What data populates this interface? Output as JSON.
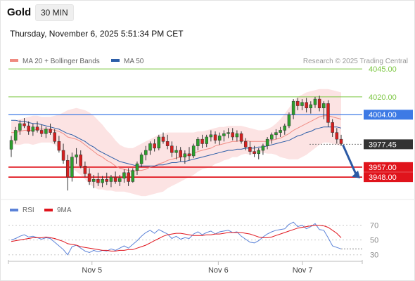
{
  "header": {
    "title": "Gold",
    "timeframe": "30 MIN",
    "datetime": "Thursday, November 6, 2025 5:51:34 PM CET"
  },
  "legend": {
    "items": [
      {
        "label": "MA 20 + Bollinger Bands",
        "color": "#ef8a80"
      },
      {
        "label": "MA 50",
        "color": "#2c5ea8"
      }
    ],
    "credit": "Research © 2025 Trading Central"
  },
  "colors": {
    "bull": "#2ca02c",
    "bear": "#d61f1f",
    "band_fill": "#fcdede",
    "green_level": "#7cc742",
    "blue_level": "#3d7ae5",
    "red_level": "#e0141c",
    "current": "#333333",
    "arrow": "#2b5aa5",
    "rsi": "#5b82d8",
    "rsi_ma": "#e0141c"
  },
  "chart_data": {
    "type": "candlestick",
    "x_labels": [
      "Nov 5",
      "Nov 6",
      "Nov 7"
    ],
    "ylim": [
      3938,
      4047
    ],
    "levels": [
      {
        "value": 4045.0,
        "label": "4045.00",
        "kind": "resistance-green"
      },
      {
        "value": 4020.0,
        "label": "4020.00",
        "kind": "resistance-green"
      },
      {
        "value": 4004.0,
        "label": "4004.00",
        "kind": "pivot-blue"
      },
      {
        "value": 3977.45,
        "label": "3977.45",
        "kind": "current-price"
      },
      {
        "value": 3957.0,
        "label": "3957.00",
        "kind": "target-red"
      },
      {
        "value": 3948.0,
        "label": "3948.00",
        "kind": "target-red"
      }
    ],
    "candles": [
      [
        3973,
        3985,
        3966,
        3981
      ],
      [
        3981,
        3993,
        3978,
        3990
      ],
      [
        3990,
        3999,
        3986,
        3996
      ],
      [
        3996,
        4001,
        3992,
        3994
      ],
      [
        3994,
        3998,
        3986,
        3989
      ],
      [
        3989,
        3996,
        3985,
        3993
      ],
      [
        3993,
        3998,
        3988,
        3990
      ],
      [
        3990,
        3995,
        3984,
        3987
      ],
      [
        3987,
        3993,
        3983,
        3991
      ],
      [
        3991,
        3996,
        3986,
        3988
      ],
      [
        3988,
        3991,
        3978,
        3980
      ],
      [
        3980,
        3985,
        3970,
        3972
      ],
      [
        3972,
        3978,
        3960,
        3963
      ],
      [
        3963,
        3968,
        3936,
        3948
      ],
      [
        3948,
        3970,
        3944,
        3966
      ],
      [
        3966,
        3974,
        3960,
        3968
      ],
      [
        3968,
        3972,
        3956,
        3958
      ],
      [
        3958,
        3962,
        3948,
        3951
      ],
      [
        3951,
        3956,
        3941,
        3944
      ],
      [
        3944,
        3950,
        3938,
        3946
      ],
      [
        3946,
        3952,
        3940,
        3943
      ],
      [
        3943,
        3949,
        3939,
        3946
      ],
      [
        3946,
        3952,
        3941,
        3944
      ],
      [
        3944,
        3950,
        3939,
        3948
      ],
      [
        3948,
        3953,
        3942,
        3944
      ],
      [
        3944,
        3950,
        3940,
        3947
      ],
      [
        3947,
        3955,
        3943,
        3952
      ],
      [
        3952,
        3956,
        3940,
        3944
      ],
      [
        3944,
        3956,
        3943,
        3954
      ],
      [
        3954,
        3962,
        3950,
        3960
      ],
      [
        3960,
        3970,
        3957,
        3968
      ],
      [
        3968,
        3976,
        3963,
        3972
      ],
      [
        3972,
        3980,
        3968,
        3978
      ],
      [
        3978,
        3982,
        3971,
        3974
      ],
      [
        3974,
        3986,
        3972,
        3984
      ],
      [
        3984,
        3988,
        3978,
        3980
      ],
      [
        3980,
        3986,
        3973,
        3976
      ],
      [
        3976,
        3980,
        3966,
        3970
      ],
      [
        3970,
        3976,
        3964,
        3972
      ],
      [
        3972,
        3975,
        3962,
        3966
      ],
      [
        3966,
        3972,
        3960,
        3969
      ],
      [
        3969,
        3975,
        3963,
        3967
      ],
      [
        3967,
        3978,
        3965,
        3976
      ],
      [
        3976,
        3984,
        3972,
        3982
      ],
      [
        3982,
        3986,
        3974,
        3978
      ],
      [
        3978,
        3986,
        3975,
        3984
      ],
      [
        3984,
        3990,
        3980,
        3986
      ],
      [
        3986,
        3989,
        3978,
        3981
      ],
      [
        3981,
        3988,
        3977,
        3985
      ],
      [
        3985,
        3990,
        3980,
        3987
      ],
      [
        3987,
        3992,
        3983,
        3988
      ],
      [
        3988,
        3992,
        3981,
        3984
      ],
      [
        3984,
        3990,
        3980,
        3987
      ],
      [
        3987,
        3989,
        3978,
        3980
      ],
      [
        3980,
        3983,
        3972,
        3975
      ],
      [
        3975,
        3980,
        3968,
        3971
      ],
      [
        3971,
        3976,
        3966,
        3969
      ],
      [
        3969,
        3974,
        3964,
        3972
      ],
      [
        3972,
        3978,
        3968,
        3976
      ],
      [
        3976,
        3984,
        3973,
        3982
      ],
      [
        3982,
        3988,
        3978,
        3986
      ],
      [
        3986,
        3991,
        3982,
        3988
      ],
      [
        3988,
        3993,
        3984,
        3990
      ],
      [
        3990,
        3996,
        3986,
        3994
      ],
      [
        3994,
        4006,
        3992,
        4004
      ],
      [
        4004,
        4018,
        4000,
        4016
      ],
      [
        4016,
        4019,
        4008,
        4012
      ],
      [
        4012,
        4018,
        4008,
        4015
      ],
      [
        4015,
        4019,
        4006,
        4010
      ],
      [
        4010,
        4016,
        4005,
        4013
      ],
      [
        4013,
        4020,
        4010,
        4018
      ],
      [
        4018,
        4021,
        4007,
        4010
      ],
      [
        4010,
        4016,
        4000,
        4014
      ],
      [
        4014,
        4017,
        3993,
        3997
      ],
      [
        3997,
        4000,
        3984,
        3988
      ],
      [
        3988,
        3992,
        3978,
        3982
      ],
      [
        3982,
        3986,
        3976,
        3978
      ]
    ],
    "ma20": [
      3988,
      3988,
      3989,
      3990,
      3990,
      3990,
      3991,
      3991,
      3991,
      3991,
      3990,
      3989,
      3987,
      3984,
      3983,
      3982,
      3980,
      3977,
      3974,
      3971,
      3968,
      3966,
      3963,
      3961,
      3958,
      3956,
      3955,
      3954,
      3953,
      3954,
      3954,
      3955,
      3957,
      3958,
      3960,
      3961,
      3963,
      3964,
      3965,
      3966,
      3967,
      3968,
      3969,
      3971,
      3972,
      3973,
      3974,
      3976,
      3977,
      3978,
      3979,
      3980,
      3980,
      3981,
      3981,
      3980,
      3980,
      3980,
      3980,
      3980,
      3981,
      3982,
      3983,
      3985,
      3987,
      3990,
      3992,
      3994,
      3996,
      3998,
      4000,
      4002,
      4003,
      4003,
      4002,
      4001,
      4000
    ],
    "upper_band": [
      3998,
      3999,
      4000,
      4001,
      4002,
      4003,
      4003,
      4002,
      4002,
      4002,
      4003,
      4004,
      4006,
      4008,
      4009,
      4010,
      4009,
      4008,
      4006,
      4003,
      3999,
      3995,
      3990,
      3986,
      3981,
      3977,
      3975,
      3974,
      3974,
      3976,
      3978,
      3980,
      3982,
      3984,
      3986,
      3987,
      3988,
      3988,
      3988,
      3988,
      3988,
      3988,
      3988,
      3989,
      3989,
      3990,
      3991,
      3992,
      3993,
      3993,
      3994,
      3994,
      3994,
      3994,
      3993,
      3992,
      3991,
      3990,
      3990,
      3991,
      3993,
      3996,
      4000,
      4005,
      4010,
      4016,
      4020,
      4022,
      4024,
      4025,
      4026,
      4027,
      4027,
      4027,
      4026,
      4025,
      4024
    ],
    "lower_band": [
      3978,
      3977,
      3977,
      3978,
      3978,
      3977,
      3978,
      3979,
      3979,
      3979,
      3977,
      3974,
      3968,
      3960,
      3956,
      3953,
      3950,
      3946,
      3942,
      3939,
      3937,
      3937,
      3936,
      3936,
      3935,
      3935,
      3935,
      3934,
      3933,
      3932,
      3931,
      3931,
      3932,
      3933,
      3934,
      3935,
      3938,
      3940,
      3942,
      3944,
      3946,
      3948,
      3950,
      3953,
      3955,
      3956,
      3957,
      3960,
      3961,
      3963,
      3964,
      3966,
      3966,
      3968,
      3969,
      3968,
      3969,
      3970,
      3970,
      3969,
      3969,
      3968,
      3966,
      3965,
      3964,
      3964,
      3964,
      3966,
      3968,
      3971,
      3974,
      3977,
      3979,
      3979,
      3978,
      3977,
      3976
    ],
    "ma50": [
      3999,
      3999,
      3998,
      3998,
      3997,
      3996,
      3996,
      3995,
      3994,
      3993,
      3992,
      3991,
      3989,
      3987,
      3986,
      3984,
      3982,
      3980,
      3977,
      3975,
      3972,
      3970,
      3968,
      3966,
      3964,
      3962,
      3961,
      3960,
      3959,
      3958,
      3958,
      3958,
      3958,
      3958,
      3959,
      3959,
      3960,
      3961,
      3961,
      3962,
      3962,
      3963,
      3964,
      3965,
      3966,
      3967,
      3968,
      3969,
      3970,
      3971,
      3972,
      3972,
      3973,
      3973,
      3974,
      3974,
      3974,
      3975,
      3975,
      3976,
      3977,
      3978,
      3979,
      3980,
      3981,
      3983,
      3985,
      3986,
      3988,
      3989,
      3991,
      3992,
      3993,
      3993,
      3993,
      3993,
      3992
    ],
    "forecast_arrow": {
      "from": 3977.45,
      "to": 3952
    },
    "rsi": {
      "label": "RSI",
      "ma_label": "9MA",
      "levels": [
        70,
        50,
        30
      ],
      "ylim": [
        25,
        78
      ],
      "values": [
        50,
        52,
        55,
        57,
        54,
        55,
        53,
        51,
        53,
        52,
        47,
        42,
        37,
        30,
        41,
        43,
        39,
        35,
        33,
        36,
        34,
        36,
        35,
        38,
        36,
        39,
        42,
        39,
        44,
        49,
        55,
        60,
        63,
        59,
        64,
        61,
        58,
        52,
        55,
        51,
        53,
        52,
        58,
        61,
        57,
        60,
        62,
        58,
        61,
        62,
        63,
        60,
        61,
        55,
        51,
        47,
        46,
        49,
        54,
        58,
        61,
        63,
        64,
        65,
        71,
        74,
        68,
        70,
        65,
        68,
        72,
        64,
        63,
        53,
        42,
        40,
        38
      ],
      "ma_values": [
        48,
        49,
        50,
        51,
        52,
        53,
        53,
        53,
        54,
        53,
        52,
        50,
        48,
        45,
        44,
        43,
        41,
        40,
        39,
        38,
        37,
        36,
        36,
        35,
        35,
        36,
        36,
        37,
        37,
        39,
        41,
        43,
        46,
        49,
        52,
        55,
        57,
        58,
        59,
        59,
        58,
        57,
        56,
        56,
        56,
        57,
        57,
        58,
        58,
        59,
        60,
        60,
        60,
        60,
        59,
        58,
        56,
        54,
        53,
        53,
        54,
        56,
        58,
        60,
        62,
        64,
        66,
        67,
        68,
        69,
        70,
        70,
        69,
        67,
        63,
        59,
        53
      ]
    }
  }
}
